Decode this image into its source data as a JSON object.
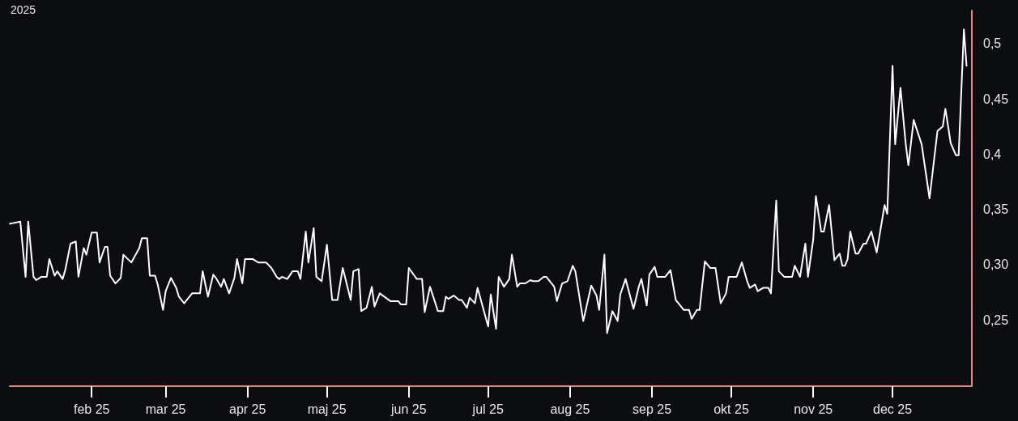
{
  "chart_data": {
    "type": "line",
    "title": "2025",
    "x": [
      "2025-01-01",
      "2025-01-05",
      "2025-01-07",
      "2025-01-08",
      "2025-01-10",
      "2025-01-11",
      "2025-01-13",
      "2025-01-15",
      "2025-01-16",
      "2025-01-18",
      "2025-01-19",
      "2025-01-21",
      "2025-01-22",
      "2025-01-24",
      "2025-01-26",
      "2025-01-27",
      "2025-01-29",
      "2025-01-30",
      "2025-02-01",
      "2025-02-03",
      "2025-02-04",
      "2025-02-06",
      "2025-02-07",
      "2025-02-08",
      "2025-02-10",
      "2025-02-12",
      "2025-02-13",
      "2025-02-16",
      "2025-02-19",
      "2025-02-20",
      "2025-02-22",
      "2025-02-23",
      "2025-02-25",
      "2025-02-26",
      "2025-02-28",
      "2025-03-01",
      "2025-03-03",
      "2025-03-05",
      "2025-03-06",
      "2025-03-08",
      "2025-03-11",
      "2025-03-14",
      "2025-03-15",
      "2025-03-17",
      "2025-03-19",
      "2025-03-20",
      "2025-03-22",
      "2025-03-23",
      "2025-03-25",
      "2025-03-27",
      "2025-03-28",
      "2025-03-30",
      "2025-03-31",
      "2025-04-03",
      "2025-04-05",
      "2025-04-08",
      "2025-04-10",
      "2025-04-12",
      "2025-04-13",
      "2025-04-14",
      "2025-04-16",
      "2025-04-18",
      "2025-04-20",
      "2025-04-21",
      "2025-04-23",
      "2025-04-24",
      "2025-04-26",
      "2025-04-27",
      "2025-04-29",
      "2025-05-01",
      "2025-05-03",
      "2025-05-05",
      "2025-05-07",
      "2025-05-10",
      "2025-05-11",
      "2025-05-13",
      "2025-05-14",
      "2025-05-16",
      "2025-05-18",
      "2025-05-19",
      "2025-05-21",
      "2025-05-25",
      "2025-05-28",
      "2025-05-29",
      "2025-05-31",
      "2025-06-01",
      "2025-06-04",
      "2025-06-06",
      "2025-06-07",
      "2025-06-09",
      "2025-06-12",
      "2025-06-14",
      "2025-06-15",
      "2025-06-16",
      "2025-06-18",
      "2025-06-20",
      "2025-06-21",
      "2025-06-23",
      "2025-06-24",
      "2025-06-26",
      "2025-06-27",
      "2025-07-01",
      "2025-07-02",
      "2025-07-04",
      "2025-07-05",
      "2025-07-07",
      "2025-07-09",
      "2025-07-10",
      "2025-07-12",
      "2025-07-13",
      "2025-07-15",
      "2025-07-17",
      "2025-07-18",
      "2025-07-20",
      "2025-07-22",
      "2025-07-23",
      "2025-07-26",
      "2025-07-27",
      "2025-07-29",
      "2025-07-31",
      "2025-08-02",
      "2025-08-03",
      "2025-08-06",
      "2025-08-09",
      "2025-08-11",
      "2025-08-12",
      "2025-08-14",
      "2025-08-15",
      "2025-08-17",
      "2025-08-19",
      "2025-08-20",
      "2025-08-22",
      "2025-08-25",
      "2025-08-27",
      "2025-08-28",
      "2025-08-30",
      "2025-08-31",
      "2025-09-02",
      "2025-09-03",
      "2025-09-06",
      "2025-09-08",
      "2025-09-10",
      "2025-09-12",
      "2025-09-13",
      "2025-09-15",
      "2025-09-16",
      "2025-09-18",
      "2025-09-19",
      "2025-09-21",
      "2025-09-23",
      "2025-09-25",
      "2025-09-27",
      "2025-09-29",
      "2025-09-30",
      "2025-10-03",
      "2025-10-05",
      "2025-10-07",
      "2025-10-08",
      "2025-10-10",
      "2025-10-11",
      "2025-10-13",
      "2025-10-15",
      "2025-10-16",
      "2025-10-18",
      "2025-10-19",
      "2025-10-21",
      "2025-10-24",
      "2025-10-25",
      "2025-10-27",
      "2025-10-29",
      "2025-10-30",
      "2025-11-01",
      "2025-11-02",
      "2025-11-04",
      "2025-11-05",
      "2025-11-07",
      "2025-11-09",
      "2025-11-11",
      "2025-11-12",
      "2025-11-13",
      "2025-11-14",
      "2025-11-15",
      "2025-11-17",
      "2025-11-18",
      "2025-11-20",
      "2025-11-21",
      "2025-11-23",
      "2025-11-25",
      "2025-11-28",
      "2025-11-29",
      "2025-12-01",
      "2025-12-02",
      "2025-12-04",
      "2025-12-06",
      "2025-12-07",
      "2025-12-09",
      "2025-12-12",
      "2025-12-15",
      "2025-12-18",
      "2025-12-20",
      "2025-12-21",
      "2025-12-23",
      "2025-12-25",
      "2025-12-26",
      "2025-12-28",
      "2025-12-29"
    ],
    "series": [
      {
        "color": "#ffffff",
        "values": [
          0.337,
          0.339,
          0.289,
          0.339,
          0.289,
          0.286,
          0.289,
          0.289,
          0.305,
          0.29,
          0.294,
          0.287,
          0.295,
          0.319,
          0.321,
          0.289,
          0.315,
          0.309,
          0.329,
          0.329,
          0.302,
          0.316,
          0.316,
          0.29,
          0.283,
          0.288,
          0.309,
          0.302,
          0.315,
          0.324,
          0.324,
          0.29,
          0.29,
          0.282,
          0.259,
          0.276,
          0.288,
          0.279,
          0.271,
          0.265,
          0.274,
          0.274,
          0.294,
          0.271,
          0.291,
          0.288,
          0.28,
          0.287,
          0.274,
          0.288,
          0.305,
          0.283,
          0.305,
          0.305,
          0.302,
          0.302,
          0.297,
          0.289,
          0.287,
          0.289,
          0.287,
          0.294,
          0.294,
          0.287,
          0.33,
          0.302,
          0.333,
          0.289,
          0.285,
          0.318,
          0.268,
          0.268,
          0.297,
          0.268,
          0.294,
          0.296,
          0.258,
          0.261,
          0.28,
          0.262,
          0.274,
          0.267,
          0.267,
          0.264,
          0.264,
          0.297,
          0.287,
          0.287,
          0.257,
          0.28,
          0.258,
          0.258,
          0.271,
          0.269,
          0.272,
          0.268,
          0.268,
          0.261,
          0.27,
          0.265,
          0.279,
          0.244,
          0.273,
          0.242,
          0.289,
          0.28,
          0.287,
          0.309,
          0.28,
          0.283,
          0.283,
          0.286,
          0.285,
          0.285,
          0.289,
          0.289,
          0.28,
          0.267,
          0.283,
          0.285,
          0.299,
          0.294,
          0.249,
          0.281,
          0.272,
          0.259,
          0.309,
          0.238,
          0.258,
          0.249,
          0.273,
          0.287,
          0.26,
          0.28,
          0.287,
          0.263,
          0.291,
          0.298,
          0.289,
          0.289,
          0.295,
          0.268,
          0.262,
          0.259,
          0.259,
          0.251,
          0.259,
          0.259,
          0.303,
          0.297,
          0.297,
          0.265,
          0.274,
          0.289,
          0.289,
          0.302,
          0.285,
          0.279,
          0.282,
          0.276,
          0.279,
          0.279,
          0.274,
          0.358,
          0.294,
          0.289,
          0.289,
          0.299,
          0.289,
          0.319,
          0.289,
          0.323,
          0.362,
          0.33,
          0.33,
          0.354,
          0.304,
          0.31,
          0.299,
          0.299,
          0.305,
          0.33,
          0.31,
          0.31,
          0.319,
          0.319,
          0.33,
          0.311,
          0.354,
          0.346,
          0.48,
          0.409,
          0.46,
          0.409,
          0.39,
          0.431,
          0.409,
          0.36,
          0.421,
          0.425,
          0.441,
          0.41,
          0.399,
          0.399,
          0.513,
          0.48
        ]
      }
    ],
    "xlim": [
      "2025-01-01",
      "2025-12-31"
    ],
    "xticks": [
      {
        "value": "2025-02-01",
        "label": "feb 25"
      },
      {
        "value": "2025-03-01",
        "label": "mar 25"
      },
      {
        "value": "2025-04-01",
        "label": "apr 25"
      },
      {
        "value": "2025-05-01",
        "label": "maj 25"
      },
      {
        "value": "2025-06-01",
        "label": "jun 25"
      },
      {
        "value": "2025-07-01",
        "label": "jul 25"
      },
      {
        "value": "2025-08-01",
        "label": "aug 25"
      },
      {
        "value": "2025-09-01",
        "label": "sep 25"
      },
      {
        "value": "2025-10-01",
        "label": "okt 25"
      },
      {
        "value": "2025-11-01",
        "label": "nov 25"
      },
      {
        "value": "2025-12-01",
        "label": "dec 25"
      }
    ],
    "ylim": [
      0.19,
      0.53
    ],
    "yticks": [
      {
        "value": 0.25,
        "label": "0,25"
      },
      {
        "value": 0.3,
        "label": "0,30"
      },
      {
        "value": 0.35,
        "label": "0,35"
      },
      {
        "value": 0.4,
        "label": "0,4"
      },
      {
        "value": 0.45,
        "label": "0,45"
      },
      {
        "value": 0.5,
        "label": "0,5"
      }
    ],
    "marker": "none",
    "line_style": "solid"
  }
}
